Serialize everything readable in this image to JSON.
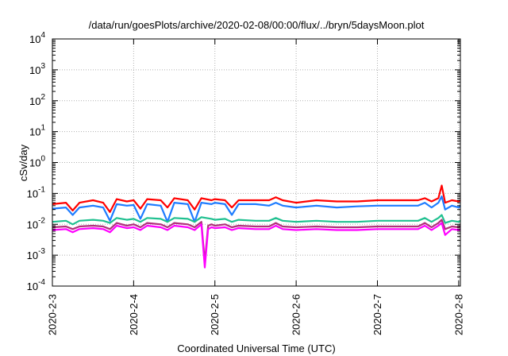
{
  "chart_data": {
    "type": "line",
    "title": "/data/run/goesPlots/archive/2020-02-08/00:00/flux/../bryn/5daysMoon.plot",
    "xlabel": "Coordinated Universal Time (UTC)",
    "ylabel": "cSv/day",
    "yscale": "log",
    "ylim": [
      0.0001,
      10000
    ],
    "y_ticks": [
      {
        "value": 0.0001,
        "base": "10",
        "exp": "-4"
      },
      {
        "value": 0.001,
        "base": "10",
        "exp": "-3"
      },
      {
        "value": 0.01,
        "base": "10",
        "exp": "-2"
      },
      {
        "value": 0.1,
        "base": "10",
        "exp": "-1"
      },
      {
        "value": 1,
        "base": "10",
        "exp": "0"
      },
      {
        "value": 10,
        "base": "10",
        "exp": "1"
      },
      {
        "value": 100,
        "base": "10",
        "exp": "2"
      },
      {
        "value": 1000,
        "base": "10",
        "exp": "3"
      },
      {
        "value": 10000,
        "base": "10",
        "exp": "4"
      }
    ],
    "xlim": [
      "2020-2-3",
      "2020-2-8 00:30"
    ],
    "x_ticks": [
      "2020-2-3",
      "2020-2-4",
      "2020-2-5",
      "2020-2-6",
      "2020-2-7",
      "2020-2-8"
    ],
    "grid": true,
    "series": [
      {
        "color": "#ff0000",
        "points": [
          [
            "2020-2-3 00:00",
            0.045
          ],
          [
            "2020-2-3 04:00",
            0.05
          ],
          [
            "2020-2-3 06:00",
            0.028
          ],
          [
            "2020-2-3 08:00",
            0.05
          ],
          [
            "2020-2-3 12:00",
            0.06
          ],
          [
            "2020-2-3 15:00",
            0.05
          ],
          [
            "2020-2-3 17:00",
            0.025
          ],
          [
            "2020-2-3 19:00",
            0.065
          ],
          [
            "2020-2-3 22:00",
            0.055
          ],
          [
            "2020-2-4 00:00",
            0.06
          ],
          [
            "2020-2-4 02:00",
            0.032
          ],
          [
            "2020-2-4 04:00",
            0.065
          ],
          [
            "2020-2-4 08:00",
            0.06
          ],
          [
            "2020-2-4 10:00",
            0.035
          ],
          [
            "2020-2-4 12:00",
            0.07
          ],
          [
            "2020-2-4 16:00",
            0.06
          ],
          [
            "2020-2-4 18:00",
            0.03
          ],
          [
            "2020-2-4 20:00",
            0.07
          ],
          [
            "2020-2-4 23:00",
            0.06
          ],
          [
            "2020-2-5 00:00",
            0.065
          ],
          [
            "2020-2-5 03:00",
            0.06
          ],
          [
            "2020-2-5 05:00",
            0.035
          ],
          [
            "2020-2-5 07:00",
            0.06
          ],
          [
            "2020-2-5 12:00",
            0.06
          ],
          [
            "2020-2-5 16:00",
            0.06
          ],
          [
            "2020-2-5 18:00",
            0.075
          ],
          [
            "2020-2-5 20:00",
            0.06
          ],
          [
            "2020-2-6 00:00",
            0.05
          ],
          [
            "2020-2-6 06:00",
            0.06
          ],
          [
            "2020-2-6 12:00",
            0.055
          ],
          [
            "2020-2-6 18:00",
            0.055
          ],
          [
            "2020-2-7 00:00",
            0.06
          ],
          [
            "2020-2-7 06:00",
            0.06
          ],
          [
            "2020-2-7 12:00",
            0.06
          ],
          [
            "2020-2-7 14:00",
            0.07
          ],
          [
            "2020-2-7 16:00",
            0.055
          ],
          [
            "2020-2-7 18:00",
            0.07
          ],
          [
            "2020-2-7 19:00",
            0.18
          ],
          [
            "2020-2-7 20:00",
            0.05
          ],
          [
            "2020-2-7 22:00",
            0.06
          ],
          [
            "2020-2-8 00:00",
            0.055
          ],
          [
            "2020-2-8 00:30",
            0.06
          ]
        ]
      },
      {
        "color": "#1e7cff",
        "points": [
          [
            "2020-2-3 00:00",
            0.032
          ],
          [
            "2020-2-3 04:00",
            0.035
          ],
          [
            "2020-2-3 06:00",
            0.02
          ],
          [
            "2020-2-3 08:00",
            0.035
          ],
          [
            "2020-2-3 12:00",
            0.04
          ],
          [
            "2020-2-3 15:00",
            0.035
          ],
          [
            "2020-2-3 17:00",
            0.013
          ],
          [
            "2020-2-3 19:00",
            0.045
          ],
          [
            "2020-2-3 22:00",
            0.04
          ],
          [
            "2020-2-4 00:00",
            0.042
          ],
          [
            "2020-2-4 02:00",
            0.015
          ],
          [
            "2020-2-4 04:00",
            0.045
          ],
          [
            "2020-2-4 08:00",
            0.04
          ],
          [
            "2020-2-4 10:00",
            0.012
          ],
          [
            "2020-2-4 12:00",
            0.05
          ],
          [
            "2020-2-4 16:00",
            0.045
          ],
          [
            "2020-2-4 18:00",
            0.012
          ],
          [
            "2020-2-4 20:00",
            0.05
          ],
          [
            "2020-2-4 23:00",
            0.045
          ],
          [
            "2020-2-5 00:00",
            0.05
          ],
          [
            "2020-2-5 03:00",
            0.045
          ],
          [
            "2020-2-5 05:00",
            0.02
          ],
          [
            "2020-2-5 07:00",
            0.045
          ],
          [
            "2020-2-5 12:00",
            0.045
          ],
          [
            "2020-2-5 16:00",
            0.04
          ],
          [
            "2020-2-5 18:00",
            0.05
          ],
          [
            "2020-2-5 20:00",
            0.04
          ],
          [
            "2020-2-6 00:00",
            0.035
          ],
          [
            "2020-2-6 06:00",
            0.04
          ],
          [
            "2020-2-6 12:00",
            0.035
          ],
          [
            "2020-2-6 18:00",
            0.038
          ],
          [
            "2020-2-7 00:00",
            0.04
          ],
          [
            "2020-2-7 06:00",
            0.04
          ],
          [
            "2020-2-7 12:00",
            0.04
          ],
          [
            "2020-2-7 14:00",
            0.05
          ],
          [
            "2020-2-7 16:00",
            0.035
          ],
          [
            "2020-2-7 18:00",
            0.05
          ],
          [
            "2020-2-7 19:00",
            0.08
          ],
          [
            "2020-2-7 20:00",
            0.03
          ],
          [
            "2020-2-7 22:00",
            0.04
          ],
          [
            "2020-2-8 00:00",
            0.035
          ],
          [
            "2020-2-8 00:30",
            0.04
          ]
        ]
      },
      {
        "color": "#20c090",
        "points": [
          [
            "2020-2-3 00:00",
            0.012
          ],
          [
            "2020-2-3 04:00",
            0.013
          ],
          [
            "2020-2-3 06:00",
            0.01
          ],
          [
            "2020-2-3 08:00",
            0.013
          ],
          [
            "2020-2-3 12:00",
            0.014
          ],
          [
            "2020-2-3 15:00",
            0.013
          ],
          [
            "2020-2-3 17:00",
            0.011
          ],
          [
            "2020-2-3 19:00",
            0.016
          ],
          [
            "2020-2-3 22:00",
            0.014
          ],
          [
            "2020-2-4 00:00",
            0.015
          ],
          [
            "2020-2-4 02:00",
            0.012
          ],
          [
            "2020-2-4 04:00",
            0.016
          ],
          [
            "2020-2-4 08:00",
            0.015
          ],
          [
            "2020-2-4 10:00",
            0.012
          ],
          [
            "2020-2-4 12:00",
            0.016
          ],
          [
            "2020-2-4 16:00",
            0.015
          ],
          [
            "2020-2-4 18:00",
            0.012
          ],
          [
            "2020-2-4 20:00",
            0.017
          ],
          [
            "2020-2-4 23:00",
            0.015
          ],
          [
            "2020-2-5 00:00",
            0.014
          ],
          [
            "2020-2-5 03:00",
            0.015
          ],
          [
            "2020-2-5 05:00",
            0.012
          ],
          [
            "2020-2-5 07:00",
            0.014
          ],
          [
            "2020-2-5 12:00",
            0.013
          ],
          [
            "2020-2-5 16:00",
            0.013
          ],
          [
            "2020-2-5 18:00",
            0.016
          ],
          [
            "2020-2-5 20:00",
            0.013
          ],
          [
            "2020-2-6 00:00",
            0.012
          ],
          [
            "2020-2-6 06:00",
            0.013
          ],
          [
            "2020-2-6 12:00",
            0.012
          ],
          [
            "2020-2-6 18:00",
            0.012
          ],
          [
            "2020-2-7 00:00",
            0.013
          ],
          [
            "2020-2-7 06:00",
            0.013
          ],
          [
            "2020-2-7 12:00",
            0.013
          ],
          [
            "2020-2-7 14:00",
            0.016
          ],
          [
            "2020-2-7 16:00",
            0.012
          ],
          [
            "2020-2-7 18:00",
            0.016
          ],
          [
            "2020-2-7 19:00",
            0.02
          ],
          [
            "2020-2-7 20:00",
            0.011
          ],
          [
            "2020-2-7 22:00",
            0.013
          ],
          [
            "2020-2-8 00:00",
            0.012
          ],
          [
            "2020-2-8 00:30",
            0.013
          ]
        ]
      },
      {
        "color": "#b0307a",
        "points": [
          [
            "2020-2-3 00:00",
            0.008
          ],
          [
            "2020-2-3 04:00",
            0.0085
          ],
          [
            "2020-2-3 06:00",
            0.007
          ],
          [
            "2020-2-3 08:00",
            0.0085
          ],
          [
            "2020-2-3 12:00",
            0.009
          ],
          [
            "2020-2-3 15:00",
            0.0085
          ],
          [
            "2020-2-3 17:00",
            0.007
          ],
          [
            "2020-2-3 19:00",
            0.011
          ],
          [
            "2020-2-3 22:00",
            0.009
          ],
          [
            "2020-2-4 00:00",
            0.01
          ],
          [
            "2020-2-4 02:00",
            0.008
          ],
          [
            "2020-2-4 04:00",
            0.011
          ],
          [
            "2020-2-4 08:00",
            0.01
          ],
          [
            "2020-2-4 10:00",
            0.008
          ],
          [
            "2020-2-4 12:00",
            0.011
          ],
          [
            "2020-2-4 16:00",
            0.01
          ],
          [
            "2020-2-4 18:00",
            0.008
          ],
          [
            "2020-2-4 20:00",
            0.012
          ],
          [
            "2020-2-4 21:00",
            0.0006
          ],
          [
            "2020-2-4 22:00",
            0.009
          ],
          [
            "2020-2-4 23:00",
            0.01
          ],
          [
            "2020-2-5 00:00",
            0.009
          ],
          [
            "2020-2-5 03:00",
            0.01
          ],
          [
            "2020-2-5 05:00",
            0.008
          ],
          [
            "2020-2-5 07:00",
            0.009
          ],
          [
            "2020-2-5 12:00",
            0.0085
          ],
          [
            "2020-2-5 16:00",
            0.0085
          ],
          [
            "2020-2-5 18:00",
            0.011
          ],
          [
            "2020-2-5 20:00",
            0.0085
          ],
          [
            "2020-2-6 00:00",
            0.008
          ],
          [
            "2020-2-6 06:00",
            0.0085
          ],
          [
            "2020-2-6 12:00",
            0.008
          ],
          [
            "2020-2-6 18:00",
            0.008
          ],
          [
            "2020-2-7 00:00",
            0.0085
          ],
          [
            "2020-2-7 06:00",
            0.0085
          ],
          [
            "2020-2-7 12:00",
            0.0085
          ],
          [
            "2020-2-7 14:00",
            0.011
          ],
          [
            "2020-2-7 16:00",
            0.008
          ],
          [
            "2020-2-7 18:00",
            0.011
          ],
          [
            "2020-2-7 19:00",
            0.014
          ],
          [
            "2020-2-7 20:00",
            0.007
          ],
          [
            "2020-2-7 22:00",
            0.0085
          ],
          [
            "2020-2-8 00:00",
            0.008
          ],
          [
            "2020-2-8 00:30",
            0.0085
          ]
        ]
      },
      {
        "color": "#ff00ff",
        "points": [
          [
            "2020-2-3 00:00",
            0.0065
          ],
          [
            "2020-2-3 04:00",
            0.007
          ],
          [
            "2020-2-3 06:00",
            0.0055
          ],
          [
            "2020-2-3 08:00",
            0.007
          ],
          [
            "2020-2-3 12:00",
            0.0075
          ],
          [
            "2020-2-3 15:00",
            0.007
          ],
          [
            "2020-2-3 17:00",
            0.0055
          ],
          [
            "2020-2-3 19:00",
            0.009
          ],
          [
            "2020-2-3 22:00",
            0.0075
          ],
          [
            "2020-2-4 00:00",
            0.008
          ],
          [
            "2020-2-4 02:00",
            0.0065
          ],
          [
            "2020-2-4 04:00",
            0.009
          ],
          [
            "2020-2-4 08:00",
            0.008
          ],
          [
            "2020-2-4 10:00",
            0.0065
          ],
          [
            "2020-2-4 12:00",
            0.009
          ],
          [
            "2020-2-4 16:00",
            0.008
          ],
          [
            "2020-2-4 18:00",
            0.0065
          ],
          [
            "2020-2-4 20:00",
            0.01
          ],
          [
            "2020-2-4 21:00",
            0.0004
          ],
          [
            "2020-2-4 22:00",
            0.007
          ],
          [
            "2020-2-4 23:00",
            0.008
          ],
          [
            "2020-2-5 00:00",
            0.0075
          ],
          [
            "2020-2-5 03:00",
            0.008
          ],
          [
            "2020-2-5 05:00",
            0.0065
          ],
          [
            "2020-2-5 07:00",
            0.0075
          ],
          [
            "2020-2-5 12:00",
            0.007
          ],
          [
            "2020-2-5 16:00",
            0.007
          ],
          [
            "2020-2-5 18:00",
            0.009
          ],
          [
            "2020-2-5 20:00",
            0.007
          ],
          [
            "2020-2-6 00:00",
            0.0065
          ],
          [
            "2020-2-6 06:00",
            0.007
          ],
          [
            "2020-2-6 12:00",
            0.0065
          ],
          [
            "2020-2-6 18:00",
            0.0065
          ],
          [
            "2020-2-7 00:00",
            0.007
          ],
          [
            "2020-2-7 06:00",
            0.007
          ],
          [
            "2020-2-7 12:00",
            0.007
          ],
          [
            "2020-2-7 14:00",
            0.009
          ],
          [
            "2020-2-7 16:00",
            0.0065
          ],
          [
            "2020-2-7 18:00",
            0.009
          ],
          [
            "2020-2-7 19:00",
            0.011
          ],
          [
            "2020-2-7 20:00",
            0.0045
          ],
          [
            "2020-2-7 22:00",
            0.007
          ],
          [
            "2020-2-8 00:00",
            0.0065
          ],
          [
            "2020-2-8 00:30",
            0.007
          ]
        ]
      }
    ]
  }
}
